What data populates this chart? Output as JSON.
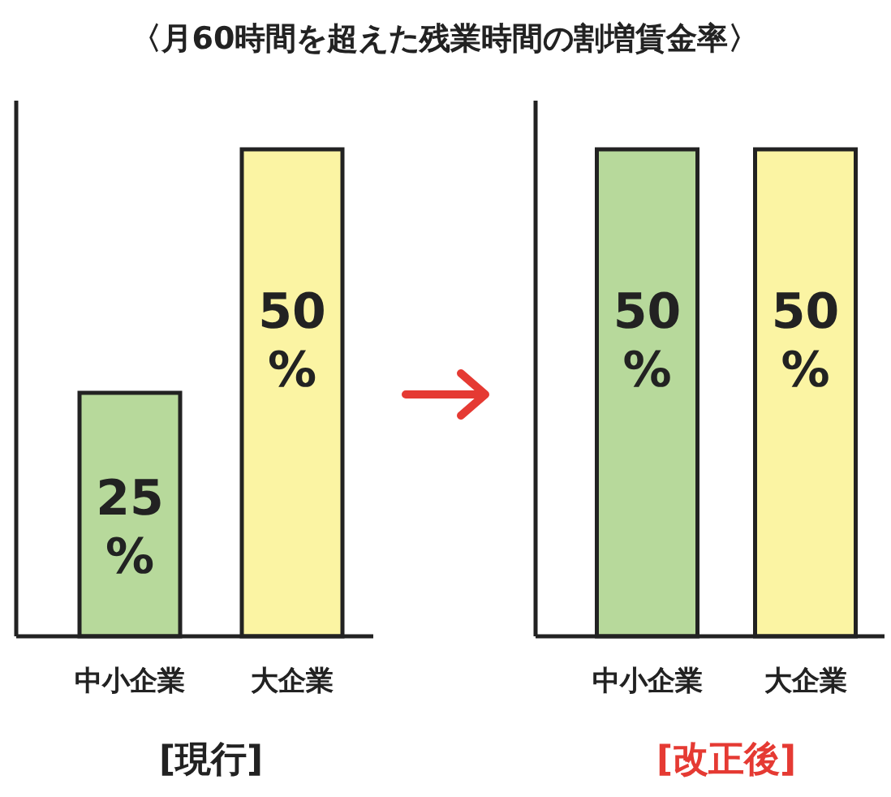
{
  "chart_data": [
    {
      "type": "bar",
      "title": "〈月60時間を超えた残業時間の割増賃金率〉",
      "xlabel": "[現行]",
      "categories": [
        "中小企業",
        "大企業"
      ],
      "values": [
        25,
        50
      ],
      "colors": [
        "#b7d99b",
        "#fbf4a3"
      ],
      "value_labels": [
        "25%",
        "50%"
      ]
    },
    {
      "type": "bar",
      "xlabel": "[改正後]",
      "categories": [
        "中小企業",
        "大企業"
      ],
      "values": [
        50,
        50
      ],
      "colors": [
        "#b7d99b",
        "#fbf4a3"
      ],
      "value_labels": [
        "50%",
        "50%"
      ]
    }
  ]
}
